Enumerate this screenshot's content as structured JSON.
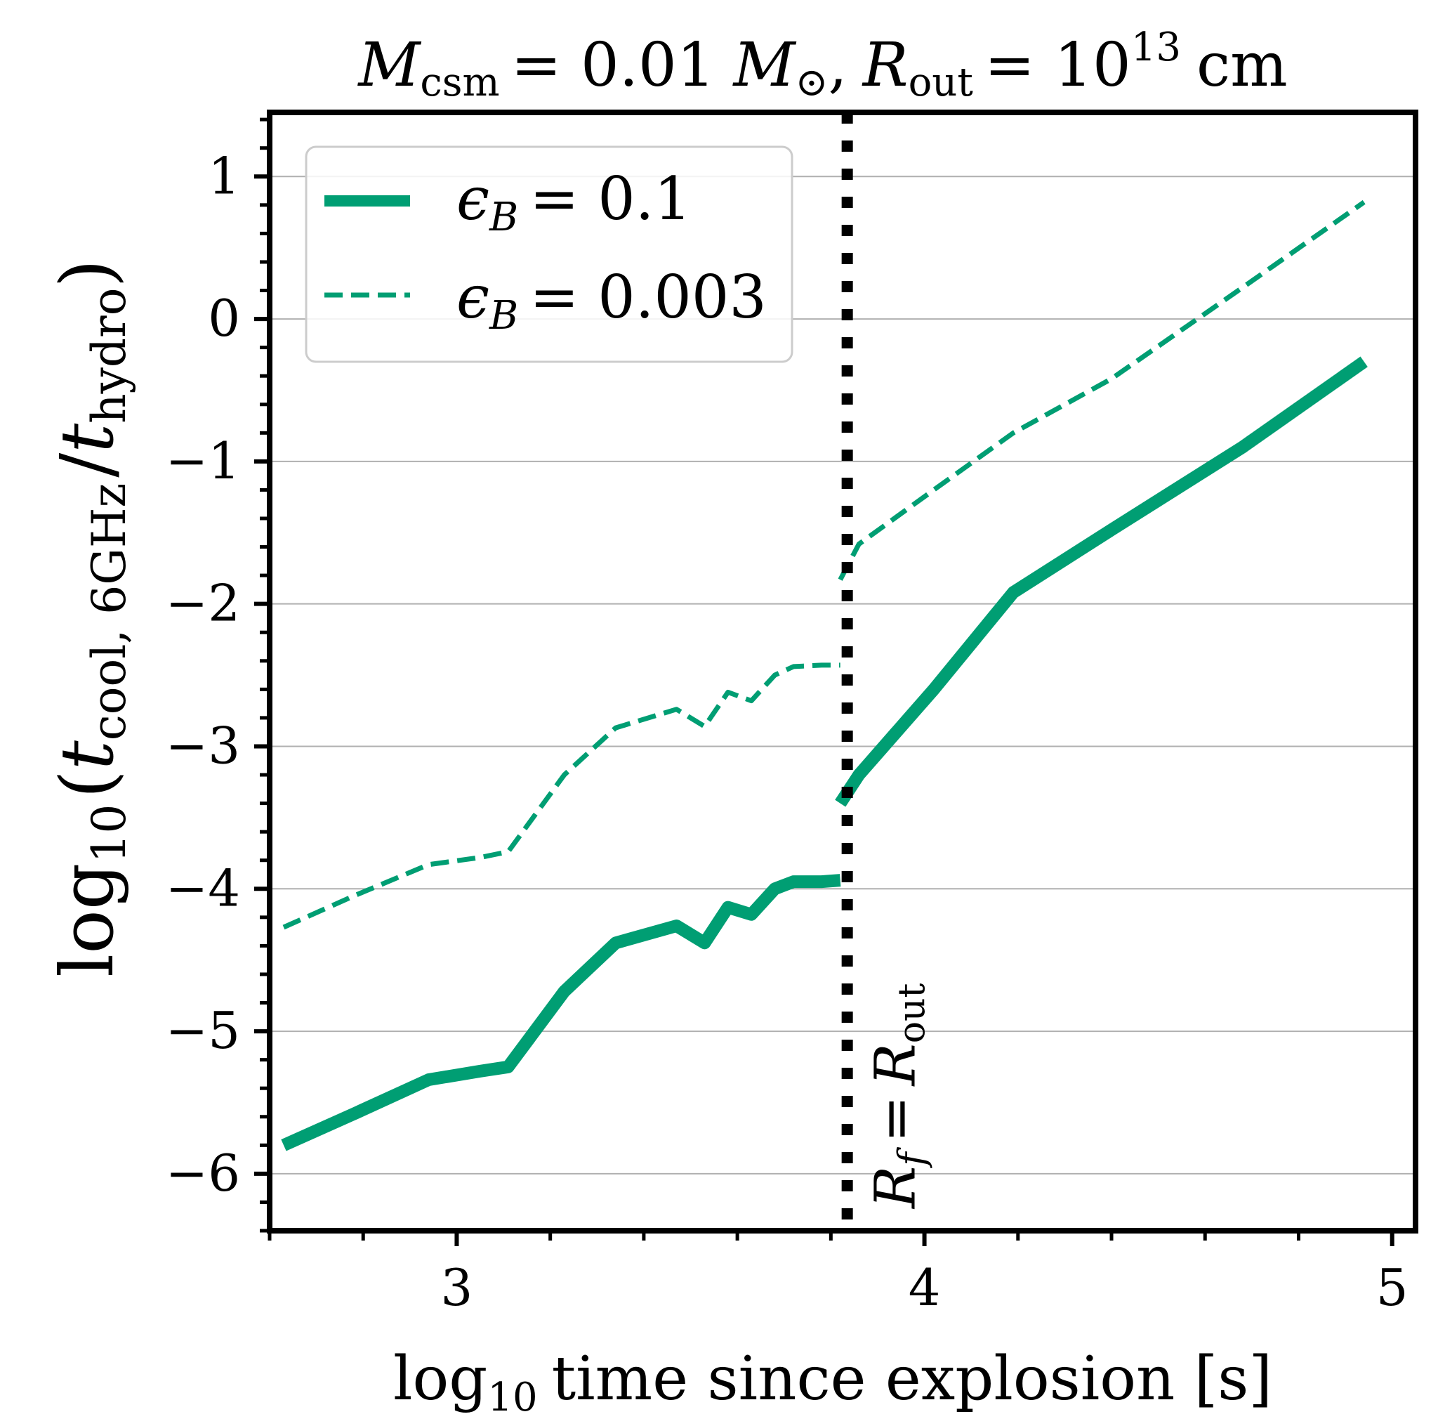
{
  "chart_data": {
    "type": "line",
    "title": {
      "mcsm_symbol": "M",
      "mcsm_sub": "csm",
      "mcsm_value": "= 0.01",
      "sun_symbol": "M",
      "sun_sub": "⊙",
      "comma": ",",
      "rout_symbol": "R",
      "rout_sub": "out",
      "rout_eq": "= 10",
      "rout_exp": "13",
      "rout_unit": "cm"
    },
    "xlabel": {
      "log": "log",
      "sub": "10",
      "text": "time since explosion [s]"
    },
    "ylabel": {
      "log": "log",
      "sub": "10",
      "open": "(",
      "t1": "t",
      "t1_sub": "cool, 6GHz",
      "slash": "/",
      "t2": "t",
      "t2_sub": "hydro",
      "close": ")"
    },
    "xlim": [
      2.6,
      5.05
    ],
    "ylim": [
      -6.4,
      1.45
    ],
    "xticks": [
      3,
      4,
      5
    ],
    "xtick_labels": [
      "3",
      "4",
      "5"
    ],
    "yticks": [
      1,
      0,
      -1,
      -2,
      -3,
      -4,
      -5,
      -6
    ],
    "ytick_labels": [
      "1",
      "0",
      "−1",
      "−2",
      "−3",
      "−4",
      "−5",
      "−6"
    ],
    "grid": "horizontal",
    "vline": {
      "x": 3.835,
      "label_symbol": "R",
      "label_sub": "f",
      "label_eq": "=",
      "label_symbol2": "R",
      "label_sub2": "out"
    },
    "series": [
      {
        "name": "ϵ_B = 0.1",
        "legend_symbol": "ϵ",
        "legend_sub": "B",
        "legend_value": "= 0.1",
        "color": "#009E73",
        "style": "solid",
        "segments": [
          {
            "x": [
              2.63,
              2.78,
              2.94,
              3.05,
              3.11,
              3.23,
              3.34,
              3.47,
              3.53,
              3.58,
              3.63,
              3.68,
              3.72,
              3.78,
              3.82
            ],
            "y": [
              -5.8,
              -5.58,
              -5.34,
              -5.28,
              -5.25,
              -4.72,
              -4.38,
              -4.26,
              -4.38,
              -4.13,
              -4.18,
              -4.0,
              -3.95,
              -3.95,
              -3.94
            ]
          },
          {
            "x": [
              3.82,
              3.86,
              4.02,
              4.19,
              4.4,
              4.68,
              4.94
            ],
            "y": [
              -3.4,
              -3.2,
              -2.6,
              -1.92,
              -1.48,
              -0.9,
              -0.3
            ]
          }
        ]
      },
      {
        "name": "ϵ_B = 0.003",
        "legend_symbol": "ϵ",
        "legend_sub": "B",
        "legend_value": "= 0.003",
        "color": "#009E73",
        "style": "dashed",
        "segments": [
          {
            "x": [
              2.63,
              2.78,
              2.94,
              3.05,
              3.11,
              3.23,
              3.34,
              3.47,
              3.53,
              3.58,
              3.63,
              3.68,
              3.72,
              3.78,
              3.82
            ],
            "y": [
              -4.27,
              -4.05,
              -3.83,
              -3.78,
              -3.74,
              -3.2,
              -2.87,
              -2.74,
              -2.86,
              -2.62,
              -2.68,
              -2.5,
              -2.44,
              -2.43,
              -2.43
            ]
          },
          {
            "x": [
              3.82,
              3.86,
              4.02,
              4.19,
              4.4,
              4.68,
              4.94
            ],
            "y": [
              -1.83,
              -1.58,
              -1.2,
              -0.8,
              -0.42,
              0.22,
              0.82
            ]
          }
        ]
      }
    ]
  }
}
